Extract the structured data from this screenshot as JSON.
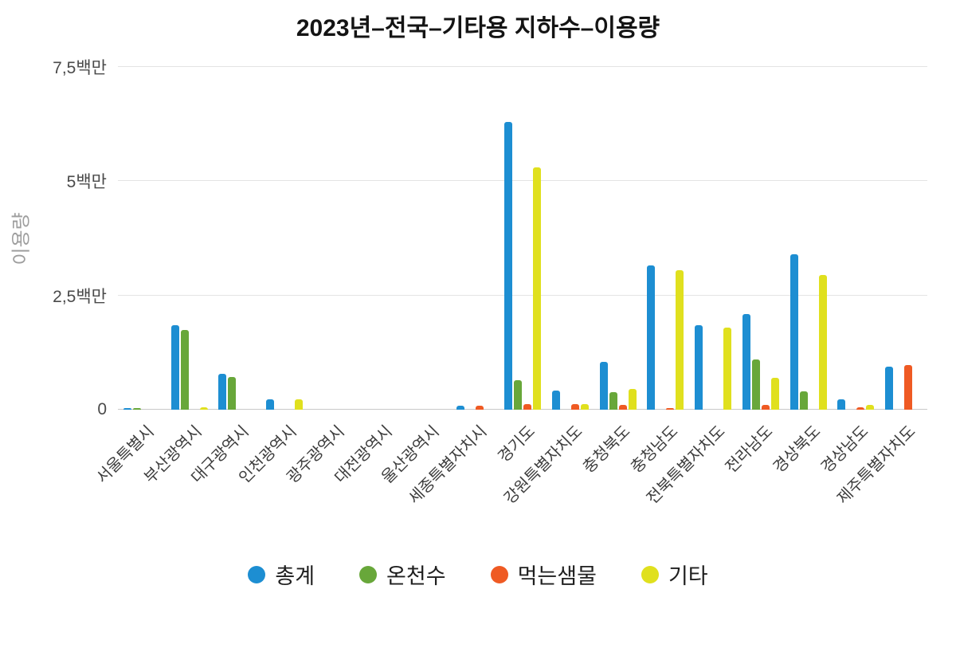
{
  "chart_data": {
    "type": "bar",
    "title": "2023년–전국–기타용 지하수–이용량",
    "xlabel": "",
    "ylabel": "이용량",
    "ylim": [
      0,
      7500000
    ],
    "grid": true,
    "legend_position": "bottom",
    "y_ticks": [
      {
        "label": "0",
        "value": 0
      },
      {
        "label": "2,5백만",
        "value": 2500000
      },
      {
        "label": "5백만",
        "value": 5000000
      },
      {
        "label": "7,5백만",
        "value": 7500000
      }
    ],
    "categories": [
      "서울특별시",
      "부산광역시",
      "대구광역시",
      "인천광역시",
      "광주광역시",
      "대전광역시",
      "울산광역시",
      "세종특별자치시",
      "경기도",
      "강원특별자치도",
      "충청북도",
      "충청남도",
      "전북특별자치도",
      "전라남도",
      "경상북도",
      "경상남도",
      "제주특별자치도"
    ],
    "series": [
      {
        "name": "총계",
        "key": "total",
        "color": "#1d8ed2",
        "values": [
          30000,
          1850000,
          780000,
          220000,
          0,
          0,
          0,
          80000,
          6300000,
          420000,
          1050000,
          3150000,
          1850000,
          2100000,
          3400000,
          220000,
          950000
        ]
      },
      {
        "name": "온천수",
        "key": "hot-spring",
        "color": "#68a73a",
        "values": [
          30000,
          1750000,
          720000,
          0,
          0,
          0,
          0,
          0,
          650000,
          0,
          380000,
          0,
          0,
          1100000,
          400000,
          0,
          0
        ]
      },
      {
        "name": "먹는샘물",
        "key": "bottled-water",
        "color": "#ef5a23",
        "values": [
          0,
          0,
          0,
          0,
          0,
          0,
          0,
          80000,
          120000,
          120000,
          100000,
          30000,
          0,
          100000,
          0,
          50000,
          970000
        ]
      },
      {
        "name": "기타",
        "key": "other",
        "color": "#e0e01e",
        "values": [
          0,
          50000,
          0,
          220000,
          0,
          0,
          0,
          0,
          5300000,
          130000,
          450000,
          3050000,
          1800000,
          700000,
          2950000,
          100000,
          0
        ]
      }
    ]
  }
}
